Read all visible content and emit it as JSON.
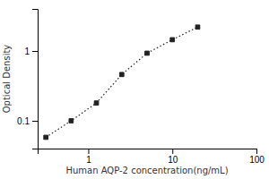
{
  "chart_data": {
    "type": "line",
    "x": [
      0.313,
      0.625,
      1.25,
      2.5,
      5.0,
      10.0,
      20.0
    ],
    "values": [
      0.058,
      0.1,
      0.18,
      0.46,
      0.93,
      1.45,
      2.2
    ],
    "xlabel": "Human AQP-2 concentration(ng/mL)",
    "ylabel": "Optical Density",
    "xlim": [
      0.25,
      100
    ],
    "ylim": [
      0.04,
      4
    ],
    "xticks": [
      1,
      10,
      100
    ],
    "yticks": [
      0.1,
      1
    ],
    "log": true,
    "grid": false,
    "color": "#222222",
    "marker": "square",
    "line_style": "dotted"
  }
}
